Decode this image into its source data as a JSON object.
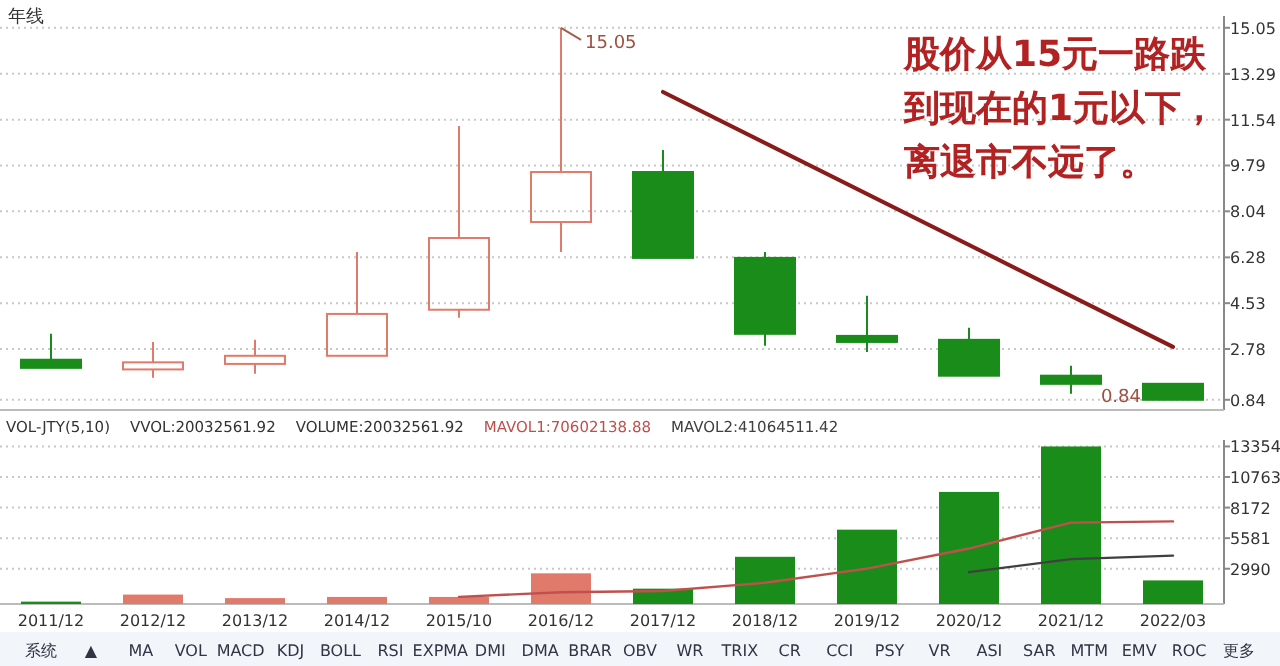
{
  "chart_data": [
    {
      "type": "candlestick",
      "title": "年线",
      "categories": [
        "2011/12",
        "2012/12",
        "2013/12",
        "2014/12",
        "2015/10",
        "2016/12",
        "2017/12",
        "2018/12",
        "2019/12",
        "2020/12",
        "2021/12",
        "2022/03"
      ],
      "ohlc": [
        [
          2.37,
          3.36,
          2.06,
          2.06
        ],
        [
          2.0,
          3.05,
          1.68,
          2.27
        ],
        [
          2.21,
          3.13,
          1.83,
          2.52
        ],
        [
          2.52,
          6.49,
          2.52,
          4.12
        ],
        [
          4.28,
          11.3,
          3.97,
          7.02
        ],
        [
          7.63,
          15.05,
          6.49,
          9.54
        ],
        [
          9.54,
          10.38,
          6.26,
          6.26
        ],
        [
          6.26,
          6.49,
          2.9,
          3.36
        ],
        [
          3.28,
          4.81,
          2.67,
          3.05
        ],
        [
          3.13,
          3.59,
          1.76,
          1.76
        ],
        [
          1.76,
          2.14,
          1.07,
          1.45
        ],
        [
          1.45,
          1.45,
          0.84,
          0.84
        ]
      ],
      "colors": [
        "#1a8c1a",
        "#e07a6a",
        "#e07a6a",
        "#e07a6a",
        "#e07a6a",
        "#e07a6a",
        "#1a8c1a",
        "#1a8c1a",
        "#1a8c1a",
        "#1a8c1a",
        "#1a8c1a",
        "#1a8c1a"
      ],
      "series": [
        {
          "type": "line",
          "color": "#8b1a1a",
          "values": [
            null,
            null,
            null,
            null,
            null,
            null,
            12.6,
            null,
            null,
            null,
            null,
            2.86
          ]
        }
      ],
      "ylim": [
        0.45,
        15.5
      ],
      "yticks": [
        0.84,
        2.78,
        4.53,
        6.28,
        8.04,
        9.79,
        11.54,
        13.29,
        15.05
      ],
      "grid": "y",
      "tick_labels": "y",
      "annotations": [
        "股价从15元一路跌到现在的1元以下，离退市不远了。",
        "15.05",
        "0.84"
      ]
    },
    {
      "type": "bar",
      "categories": [
        "2011/12",
        "2012/12",
        "2013/12",
        "2014/12",
        "2015/10",
        "2016/12",
        "2017/12",
        "2018/12",
        "2019/12",
        "2020/12",
        "2021/12",
        "2022/03"
      ],
      "values": [
        200,
        800,
        500,
        600,
        600,
        2600,
        1300,
        4000,
        6300,
        9500,
        13354,
        2000
      ],
      "colors": [
        "#1a8c1a",
        "#e07a6a",
        "#e07a6a",
        "#e07a6a",
        "#e07a6a",
        "#e07a6a",
        "#1a8c1a",
        "#1a8c1a",
        "#1a8c1a",
        "#1a8c1a",
        "#1a8c1a",
        "#1a8c1a"
      ],
      "series": [
        {
          "type": "line",
          "name": "MAVOL1:70602138.88",
          "color": "#c0504d",
          "values": [
            null,
            null,
            null,
            null,
            600,
            1000,
            1100,
            1800,
            3000,
            4700,
            6900,
            7000
          ]
        },
        {
          "type": "line",
          "name": "MAVOL2:41064511.42",
          "color": "#404040",
          "values": [
            null,
            null,
            null,
            null,
            null,
            null,
            null,
            null,
            null,
            2700,
            3800,
            4100
          ]
        }
      ],
      "legend": "top left",
      "ylim": [
        0,
        13900
      ],
      "yticks": [
        2990,
        5581,
        8172,
        10763,
        13354
      ],
      "grid": "y",
      "annotations": [
        "VOL-JTY(5,10)",
        "VVOL:20032561.92",
        "VOLUME:20032561.92",
        "系统 ▲ MA VOL MACD KDJ BOLL RSI EXPMA DMI DMA BRAR OBV WR TRIX CR CCI PSY VR ASI SAR MTM EMV ROC 更多"
      ]
    }
  ]
}
